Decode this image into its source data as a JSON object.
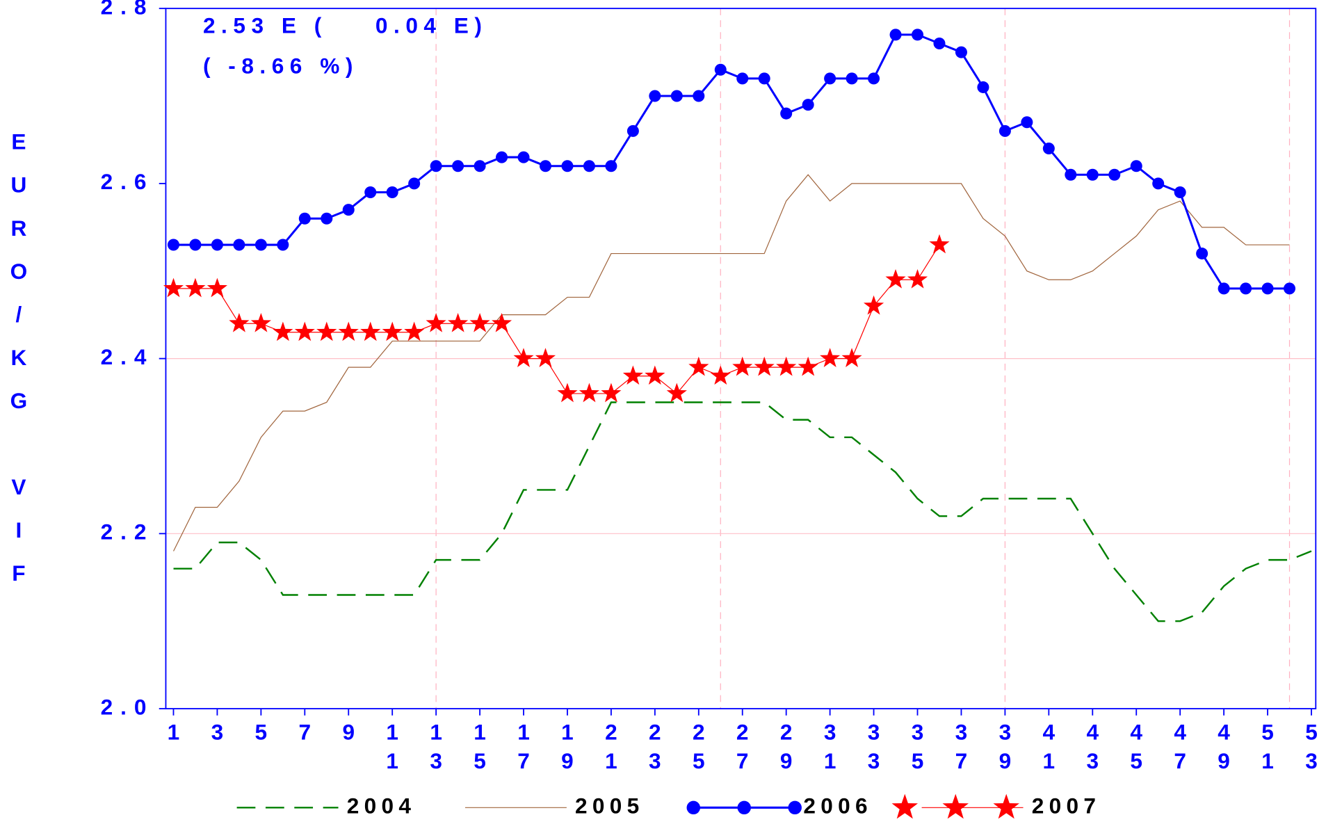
{
  "chart_data": {
    "type": "line",
    "ylabel": "EURO/KG VIF",
    "annotations": [
      "2.53 E (    0.04 E)",
      "( -8.66 %)"
    ],
    "x": [
      1,
      2,
      3,
      4,
      5,
      6,
      7,
      8,
      9,
      10,
      11,
      12,
      13,
      14,
      15,
      16,
      17,
      18,
      19,
      20,
      21,
      22,
      23,
      24,
      25,
      26,
      27,
      28,
      29,
      30,
      31,
      32,
      33,
      34,
      35,
      36,
      37,
      38,
      39,
      40,
      41,
      42,
      43,
      44,
      45,
      46,
      47,
      48,
      49,
      50,
      51,
      52,
      53
    ],
    "xlim": [
      0.65,
      53.2
    ],
    "xticks": [
      1,
      3,
      5,
      7,
      9,
      11,
      13,
      15,
      17,
      19,
      21,
      23,
      25,
      27,
      29,
      31,
      33,
      35,
      37,
      39,
      41,
      43,
      45,
      47,
      49,
      51,
      53
    ],
    "ylim": [
      2.0,
      2.8
    ],
    "yticks": [
      {
        "value": 2.0,
        "label": "2.0"
      },
      2.2,
      2.4,
      2.6,
      2.8
    ],
    "xgrid": [
      13,
      26,
      39,
      52
    ],
    "ygrid": [
      2.2,
      2.4
    ],
    "series": [
      {
        "name": "2004",
        "color": "#008000",
        "style": "dashed",
        "values": [
          2.16,
          2.16,
          2.19,
          2.19,
          2.17,
          2.13,
          2.13,
          2.13,
          2.13,
          2.13,
          2.13,
          2.13,
          2.17,
          2.17,
          2.17,
          2.2,
          2.25,
          2.25,
          2.25,
          2.3,
          2.35,
          2.35,
          2.35,
          2.35,
          2.35,
          2.35,
          2.35,
          2.35,
          2.33,
          2.33,
          2.31,
          2.31,
          2.29,
          2.27,
          2.24,
          2.22,
          2.22,
          2.24,
          2.24,
          2.24,
          2.24,
          2.24,
          2.2,
          2.16,
          2.13,
          2.1,
          2.1,
          2.11,
          2.14,
          2.16,
          2.17,
          2.17,
          2.18
        ]
      },
      {
        "name": "2005",
        "color": "#a0643c",
        "style": "thin",
        "values": [
          2.18,
          2.23,
          2.23,
          2.26,
          2.31,
          2.34,
          2.34,
          2.35,
          2.39,
          2.39,
          2.42,
          2.42,
          2.42,
          2.42,
          2.42,
          2.45,
          2.45,
          2.45,
          2.47,
          2.47,
          2.52,
          2.52,
          2.52,
          2.52,
          2.52,
          2.52,
          2.52,
          2.52,
          2.58,
          2.61,
          2.58,
          2.6,
          2.6,
          2.6,
          2.6,
          2.6,
          2.6,
          2.56,
          2.54,
          2.5,
          2.49,
          2.49,
          2.5,
          2.52,
          2.54,
          2.57,
          2.58,
          2.55,
          2.55,
          2.53,
          2.53,
          2.53,
          null
        ]
      },
      {
        "name": "2006",
        "color": "#0000ff",
        "style": "circle",
        "values": [
          2.53,
          2.53,
          2.53,
          2.53,
          2.53,
          2.53,
          2.56,
          2.56,
          2.57,
          2.59,
          2.59,
          2.6,
          2.62,
          2.62,
          2.62,
          2.63,
          2.63,
          2.62,
          2.62,
          2.62,
          2.62,
          2.66,
          2.7,
          2.7,
          2.7,
          2.73,
          2.72,
          2.72,
          2.68,
          2.69,
          2.72,
          2.72,
          2.72,
          2.77,
          2.77,
          2.76,
          2.75,
          2.71,
          2.66,
          2.67,
          2.64,
          2.61,
          2.61,
          2.61,
          2.62,
          2.6,
          2.59,
          2.52,
          2.48,
          2.48,
          2.48,
          2.48,
          null
        ]
      },
      {
        "name": "2007",
        "color": "#ff0000",
        "style": "star",
        "values": [
          2.48,
          2.48,
          2.48,
          2.44,
          2.44,
          2.43,
          2.43,
          2.43,
          2.43,
          2.43,
          2.43,
          2.43,
          2.44,
          2.44,
          2.44,
          2.44,
          2.4,
          2.4,
          2.36,
          2.36,
          2.36,
          2.38,
          2.38,
          2.36,
          2.39,
          2.38,
          2.39,
          2.39,
          2.39,
          2.39,
          2.4,
          2.4,
          2.46,
          2.49,
          2.49,
          2.53,
          null,
          null,
          null,
          null,
          null,
          null,
          null,
          null,
          null,
          null,
          null,
          null,
          null,
          null,
          null,
          null,
          null
        ]
      }
    ]
  }
}
